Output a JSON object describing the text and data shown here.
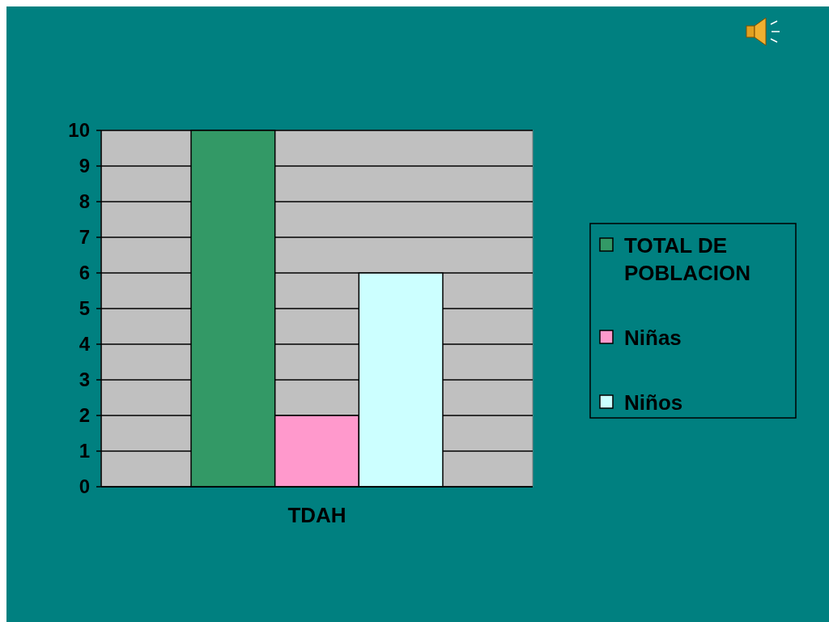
{
  "chart_data": {
    "type": "bar",
    "categories": [
      "TDAH"
    ],
    "series": [
      {
        "name": "TOTAL DE POBLACION",
        "color": "#339966",
        "values": [
          10
        ]
      },
      {
        "name": "Niñas",
        "color": "#ff99cc",
        "values": [
          2
        ]
      },
      {
        "name": "Niños",
        "color": "#ccffff",
        "values": [
          6
        ]
      }
    ],
    "ylim": [
      0,
      10
    ],
    "yticks": [
      0,
      1,
      2,
      3,
      4,
      5,
      6,
      7,
      8,
      9,
      10
    ],
    "grid": "y",
    "legend": "right"
  }
}
